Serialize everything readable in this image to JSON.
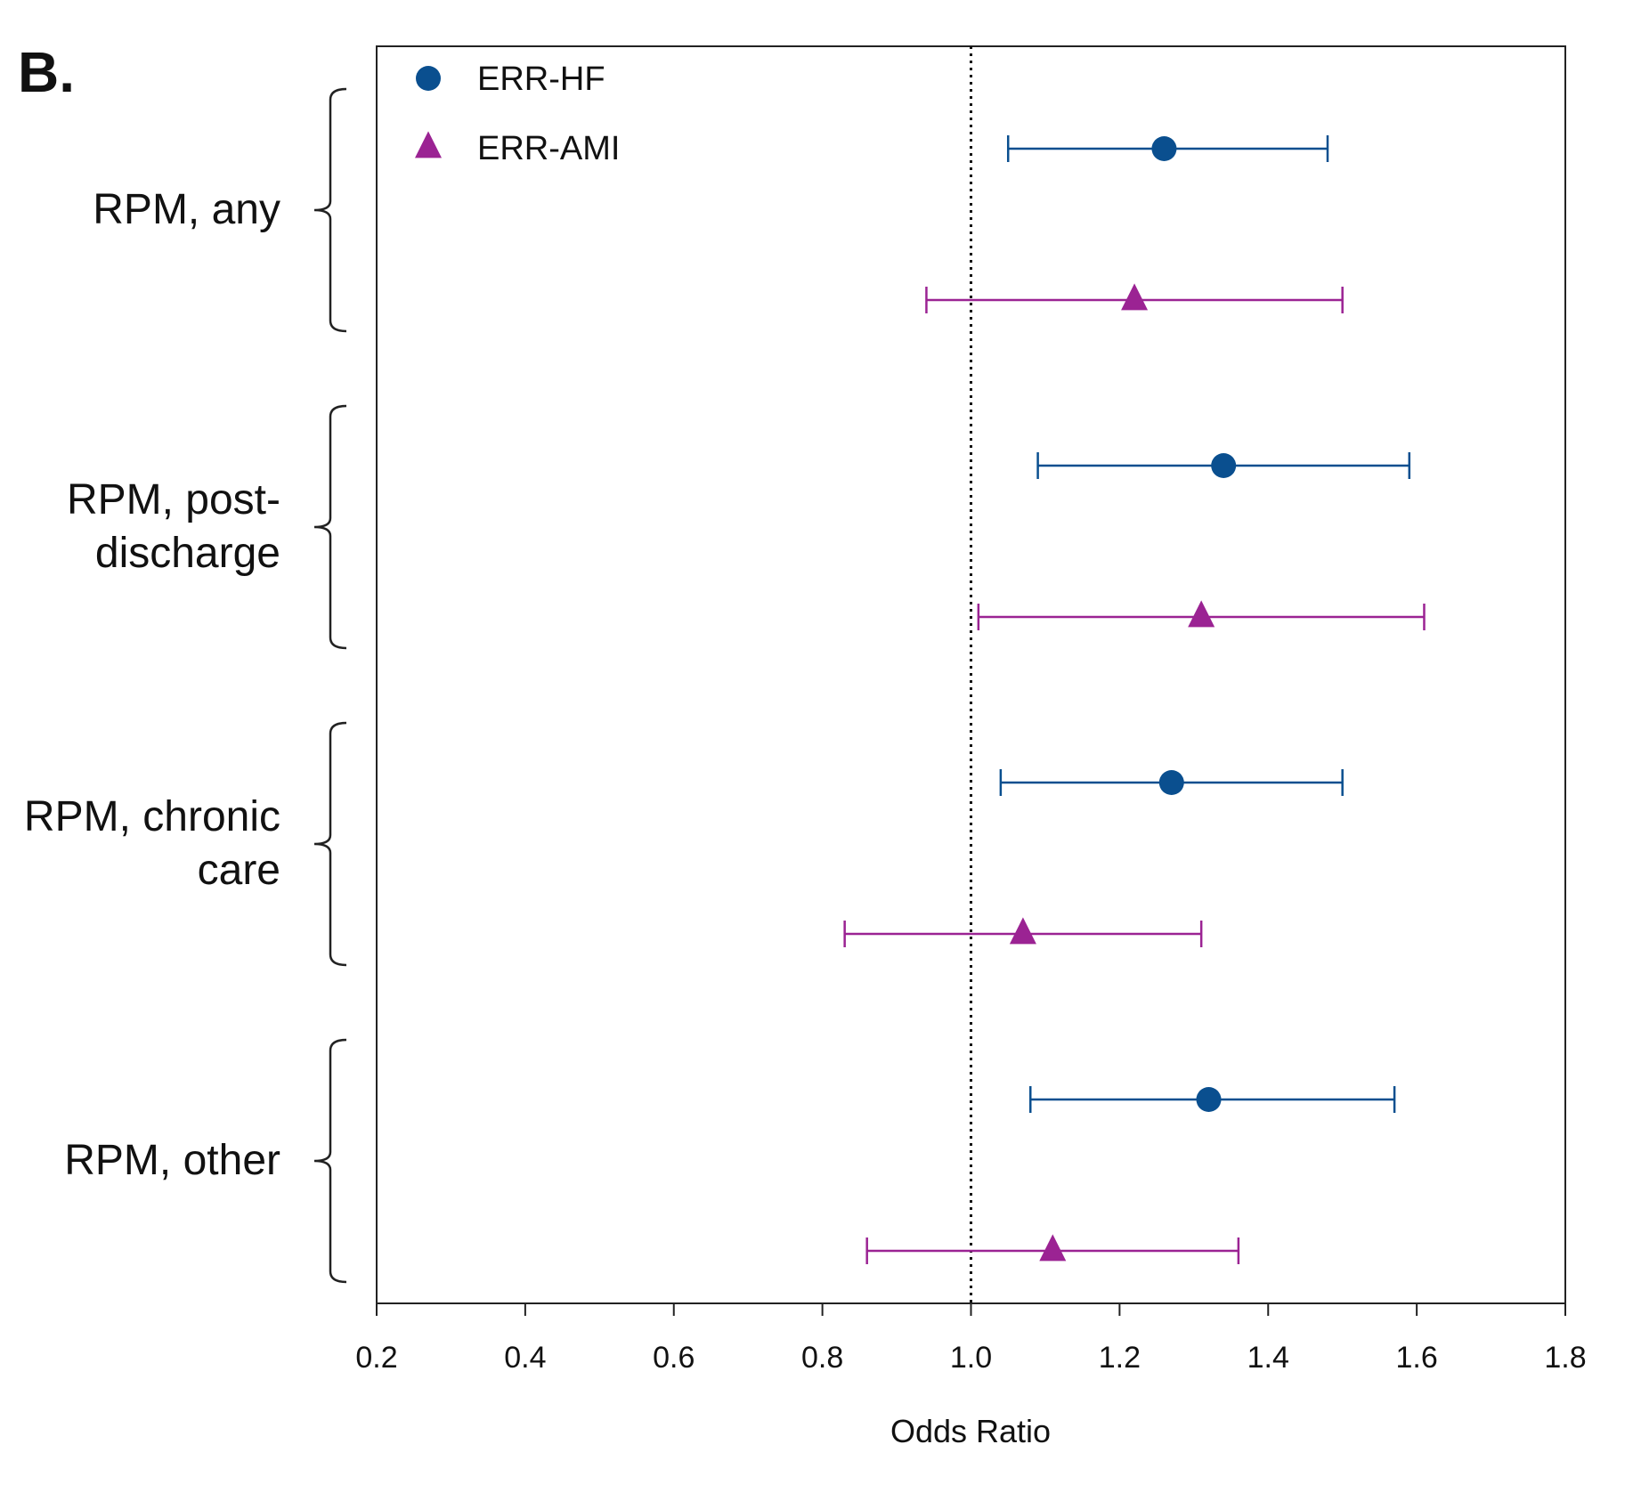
{
  "panel_label": "B.",
  "chart_data": {
    "type": "forest",
    "title": "",
    "xlabel": "Odds Ratio",
    "ylabel": "",
    "xlim": [
      0.2,
      1.8
    ],
    "xticks": [
      "0.2",
      "0.4",
      "0.6",
      "0.8",
      "1.0",
      "1.2",
      "1.4",
      "1.6",
      "1.8"
    ],
    "reference_line": 1.0,
    "legend": [
      {
        "name": "ERR-HF",
        "marker": "circle",
        "color": "#0a4f8f"
      },
      {
        "name": "ERR-AMI",
        "marker": "triangle",
        "color": "#9b2393"
      }
    ],
    "groups": [
      {
        "label_lines": [
          "RPM, any"
        ],
        "estimates": [
          {
            "series": "ERR-HF",
            "or": 1.26,
            "lower": 1.05,
            "upper": 1.48
          },
          {
            "series": "ERR-AMI",
            "or": 1.22,
            "lower": 0.94,
            "upper": 1.5
          }
        ]
      },
      {
        "label_lines": [
          "RPM, post-",
          "discharge"
        ],
        "estimates": [
          {
            "series": "ERR-HF",
            "or": 1.34,
            "lower": 1.09,
            "upper": 1.59
          },
          {
            "series": "ERR-AMI",
            "or": 1.31,
            "lower": 1.01,
            "upper": 1.61
          }
        ]
      },
      {
        "label_lines": [
          "RPM, chronic",
          "care"
        ],
        "estimates": [
          {
            "series": "ERR-HF",
            "or": 1.27,
            "lower": 1.04,
            "upper": 1.5
          },
          {
            "series": "ERR-AMI",
            "or": 1.07,
            "lower": 0.83,
            "upper": 1.31
          }
        ]
      },
      {
        "label_lines": [
          "RPM, other"
        ],
        "estimates": [
          {
            "series": "ERR-HF",
            "or": 1.32,
            "lower": 1.08,
            "upper": 1.57
          },
          {
            "series": "ERR-AMI",
            "or": 1.11,
            "lower": 0.86,
            "upper": 1.36
          }
        ]
      }
    ]
  }
}
